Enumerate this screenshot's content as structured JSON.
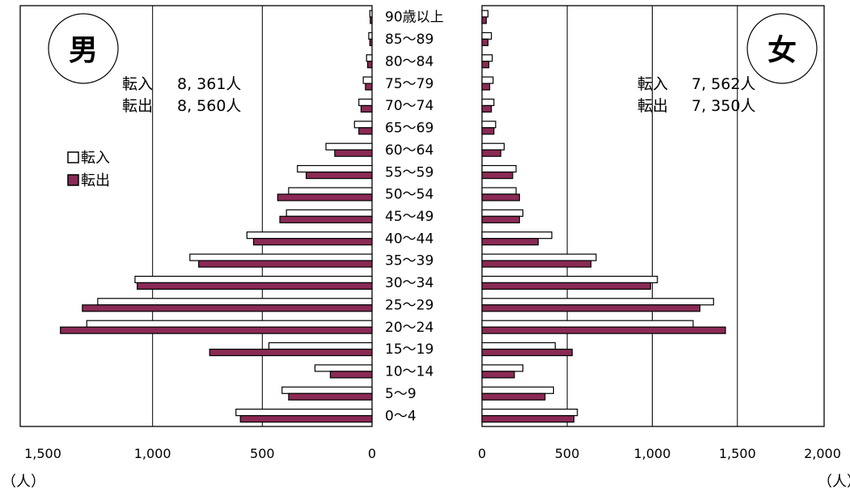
{
  "chart_data": {
    "type": "bar",
    "categories": [
      "0～4",
      "5～9",
      "10～14",
      "15～19",
      "20～24",
      "25～29",
      "30～34",
      "35～39",
      "40～44",
      "45～49",
      "50～54",
      "55～59",
      "60～64",
      "65～69",
      "70～74",
      "75～79",
      "80～84",
      "85～89",
      "90歳以上"
    ],
    "panels": [
      {
        "gender_label": "男",
        "totals": [
          {
            "label": "転入",
            "value": "8, 361人"
          },
          {
            "label": "転出",
            "value": "8, 560人"
          }
        ],
        "xlim": [
          0,
          1500
        ],
        "ticks": [
          "1,500",
          "1,000",
          "500",
          "0"
        ],
        "tick_values": [
          1500,
          1000,
          500,
          0
        ],
        "series": [
          {
            "name": "転入",
            "values": [
              620,
              410,
              260,
              470,
              1300,
              1250,
              1080,
              830,
              570,
              390,
              380,
              340,
              210,
              80,
              60,
              40,
              25,
              15,
              10
            ]
          },
          {
            "name": "転出",
            "values": [
              600,
              380,
              190,
              740,
              1420,
              1320,
              1070,
              790,
              540,
              420,
              430,
              300,
              170,
              60,
              50,
              30,
              20,
              10,
              8
            ]
          }
        ]
      },
      {
        "gender_label": "女",
        "totals": [
          {
            "label": "転入",
            "value": "7, 562人"
          },
          {
            "label": "転出",
            "value": "7, 350人"
          }
        ],
        "xlim": [
          0,
          2000
        ],
        "ticks": [
          "0",
          "500",
          "1,000",
          "1,500",
          "2,000"
        ],
        "tick_values": [
          0,
          500,
          1000,
          1500,
          2000
        ],
        "series": [
          {
            "name": "転入",
            "values": [
              560,
              420,
              240,
              430,
              1240,
              1360,
              1030,
              670,
              410,
              240,
              200,
              200,
              130,
              80,
              70,
              65,
              60,
              55,
              35
            ]
          },
          {
            "name": "転出",
            "values": [
              540,
              370,
              190,
              530,
              1430,
              1280,
              990,
              640,
              330,
              220,
              220,
              180,
              110,
              70,
              55,
              45,
              40,
              35,
              25
            ]
          }
        ]
      }
    ],
    "unit": "（人）",
    "legend": {
      "position": "left",
      "items": [
        "転入",
        "転出"
      ]
    },
    "colors": {
      "in_fill": "#ffffff",
      "out_fill": "#8a2a55",
      "bar_stroke": "#000000",
      "grid": "#000000"
    }
  }
}
